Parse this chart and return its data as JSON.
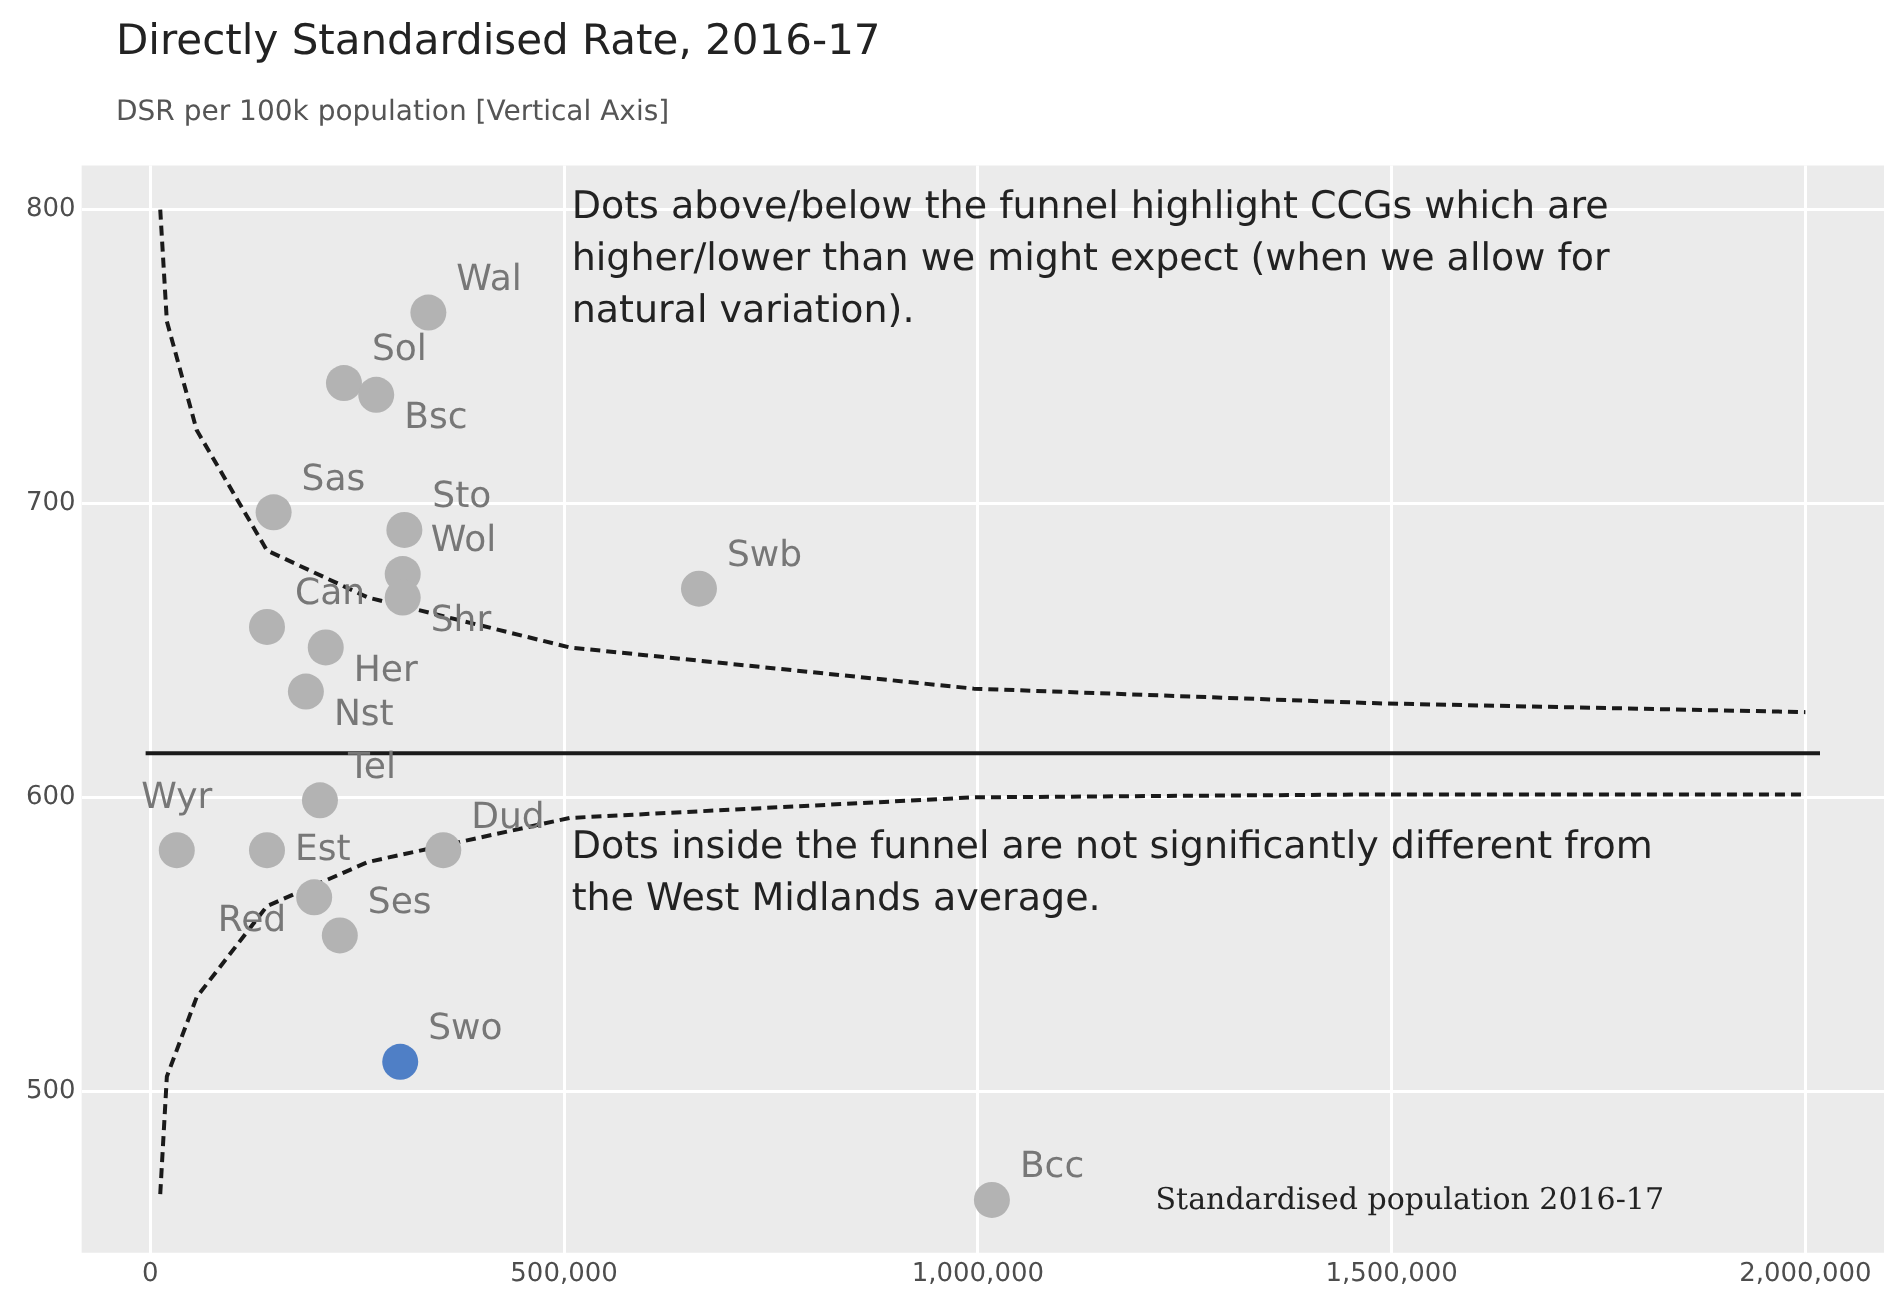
{
  "chart_data": {
    "type": "scatter",
    "title": "Directly Standardised Rate, 2016-17",
    "subtitle": "DSR per 100k population [Vertical Axis]",
    "xlim": [
      -83000,
      2095000
    ],
    "ylim": [
      445,
      815
    ],
    "xticks": [
      0,
      {
        "value": 500000,
        "label": "500,000"
      },
      {
        "value": 1000000,
        "label": "1,000,000"
      },
      {
        "value": 1500000,
        "label": "1,500,000"
      },
      {
        "value": 2000000,
        "label": "2,000,000"
      }
    ],
    "yticks": [
      500,
      600,
      700,
      800
    ],
    "grid": true,
    "legend": false,
    "xlabel": "Standardised population 2016-17",
    "series": [
      {
        "marker": "circle",
        "value_labels": [
          "Wal",
          "Sol",
          "Bsc",
          "Sas",
          "Sto",
          "Wol",
          "Shr",
          "Swb",
          "Can",
          "Her",
          "Nst",
          "Tel",
          "Wyr",
          "Est",
          "Dud",
          "Red",
          "Ses",
          "Swo",
          "Bcc"
        ],
        "x": [
          336000,
          234000,
          273000,
          149000,
          307000,
          305000,
          305000,
          663000,
          141000,
          212000,
          188000,
          205000,
          32000,
          141000,
          354000,
          198000,
          229000,
          302000,
          1017000
        ],
        "values": [
          765,
          741,
          737,
          697,
          691,
          676,
          668,
          671,
          658,
          651,
          636,
          599,
          582,
          582,
          582,
          566,
          553,
          510,
          463
        ],
        "colors": [
          "#b3b3b3",
          "#b3b3b3",
          "#b3b3b3",
          "#b3b3b3",
          "#b3b3b3",
          "#b3b3b3",
          "#b3b3b3",
          "#b3b3b3",
          "#b3b3b3",
          "#b3b3b3",
          "#b3b3b3",
          "#b3b3b3",
          "#b3b3b3",
          "#b3b3b3",
          "#b3b3b3",
          "#b3b3b3",
          "#b3b3b3",
          "#4f7fc6",
          "#b3b3b3"
        ]
      },
      {
        "type": "line",
        "line_style": "dashed",
        "color": "#1a1a1a",
        "x": [
          12000,
          20000,
          56000,
          141000,
          263000,
          507000,
          995000,
          1483000,
          2000000
        ],
        "values": [
          800,
          762,
          725,
          684,
          668,
          651,
          637,
          632,
          629
        ]
      },
      {
        "type": "line",
        "line_style": "dashed",
        "color": "#1a1a1a",
        "x": [
          12000,
          20000,
          56000,
          141000,
          263000,
          507000,
          995000,
          1483000,
          2000000
        ],
        "values": [
          465,
          505,
          532,
          563,
          578,
          593,
          600,
          601,
          601
        ]
      }
    ],
    "ref_lines": [
      {
        "axis": "y",
        "value": 615,
        "color": "#1a1a1a"
      }
    ],
    "annotations": [
      "Dots above/below the funnel highlight CCGs which are higher/lower than we might expect (when we allow for natural variation).",
      "Dots inside the funnel are not significantly different from the West Midlands average."
    ]
  }
}
